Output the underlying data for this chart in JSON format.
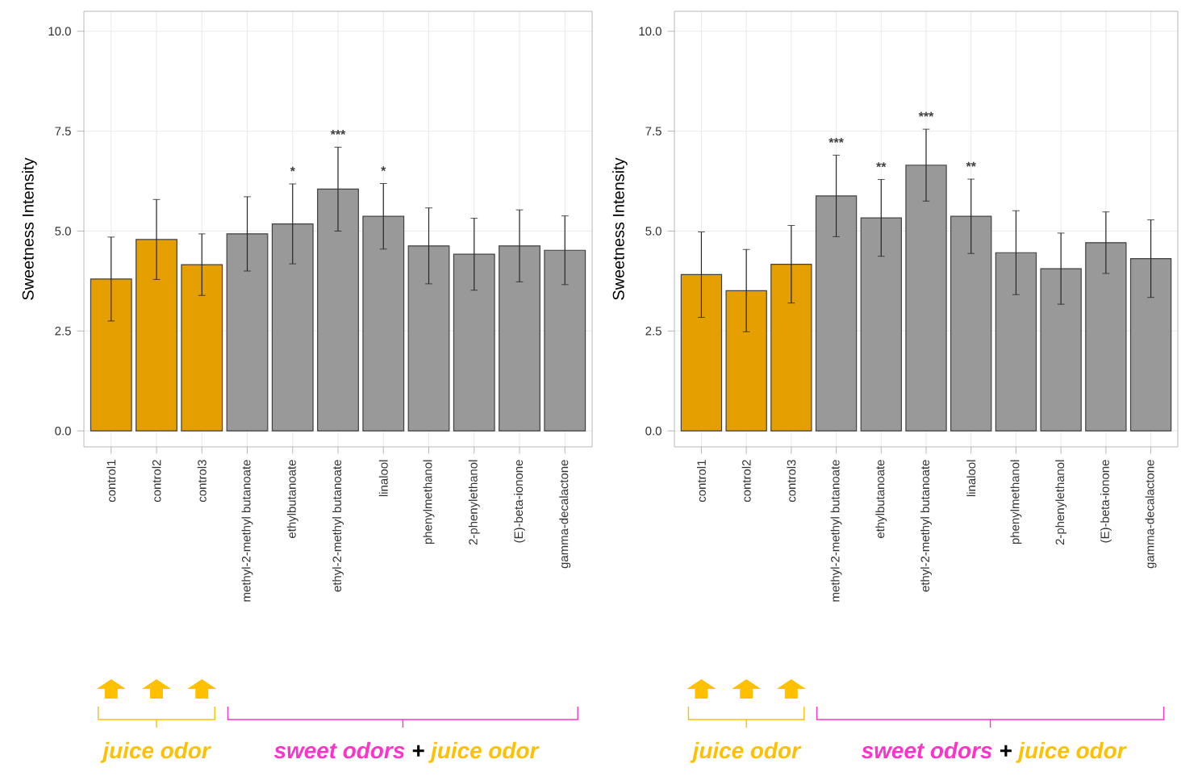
{
  "chart_data": [
    {
      "type": "bar",
      "ylabel": "Sweetness Intensity",
      "categories": [
        "control1",
        "control2",
        "control3",
        "methyl-2-methyl butanoate",
        "ethylbutanoate",
        "ethyl-2-methyl butanoate",
        "linalool",
        "phenylmethanol",
        "2-phenylethanol",
        "(E)-beta-ionone",
        "gamma-decalactone"
      ],
      "values": [
        3.8,
        4.79,
        4.16,
        4.93,
        5.18,
        6.05,
        5.37,
        4.63,
        4.42,
        4.63,
        4.52
      ],
      "errors": [
        1.05,
        1.0,
        0.77,
        0.93,
        1.0,
        1.05,
        0.82,
        0.95,
        0.9,
        0.9,
        0.86
      ],
      "colors": [
        "#e69f00",
        "#e69f00",
        "#e69f00",
        "#999999",
        "#999999",
        "#999999",
        "#999999",
        "#999999",
        "#999999",
        "#999999",
        "#999999"
      ],
      "ylim": [
        -0.4,
        10.5
      ],
      "yticks": [
        {
          "value": 0,
          "label": "0.0"
        },
        {
          "value": 2.5,
          "label": "2.5"
        },
        {
          "value": 5,
          "label": "5.0"
        },
        {
          "value": 7.5,
          "label": "7.5"
        },
        {
          "value": 10,
          "label": "10.0"
        }
      ],
      "grid": true,
      "annotations": [
        "*",
        "***",
        "*",
        "juice odor",
        "sweet odors",
        "+",
        "juice odor"
      ]
    },
    {
      "type": "bar",
      "ylabel": "Sweetness Intensity",
      "categories": [
        "control1",
        "control2",
        "control3",
        "methyl-2-methyl butanoate",
        "ethylbutanoate",
        "ethyl-2-methyl butanoate",
        "linalool",
        "phenylmethanol",
        "2-phenylethanol",
        "(E)-beta-ionone",
        "gamma-decalactone"
      ],
      "values": [
        3.91,
        3.51,
        4.17,
        5.88,
        5.33,
        6.65,
        5.37,
        4.46,
        4.06,
        4.71,
        4.31
      ],
      "errors": [
        1.07,
        1.03,
        0.97,
        1.02,
        0.96,
        0.9,
        0.93,
        1.05,
        0.89,
        0.77,
        0.97
      ],
      "colors": [
        "#e69f00",
        "#e69f00",
        "#e69f00",
        "#999999",
        "#999999",
        "#999999",
        "#999999",
        "#999999",
        "#999999",
        "#999999",
        "#999999"
      ],
      "ylim": [
        -0.4,
        10.5
      ],
      "yticks": [
        {
          "value": 0,
          "label": "0.0"
        },
        {
          "value": 2.5,
          "label": "2.5"
        },
        {
          "value": 5,
          "label": "5.0"
        },
        {
          "value": 7.5,
          "label": "7.5"
        },
        {
          "value": 10,
          "label": "10.0"
        }
      ],
      "grid": true,
      "annotations": [
        "***",
        "**",
        "***",
        "**",
        "juice odor",
        "sweet odors",
        "+",
        "juice odor"
      ]
    }
  ]
}
